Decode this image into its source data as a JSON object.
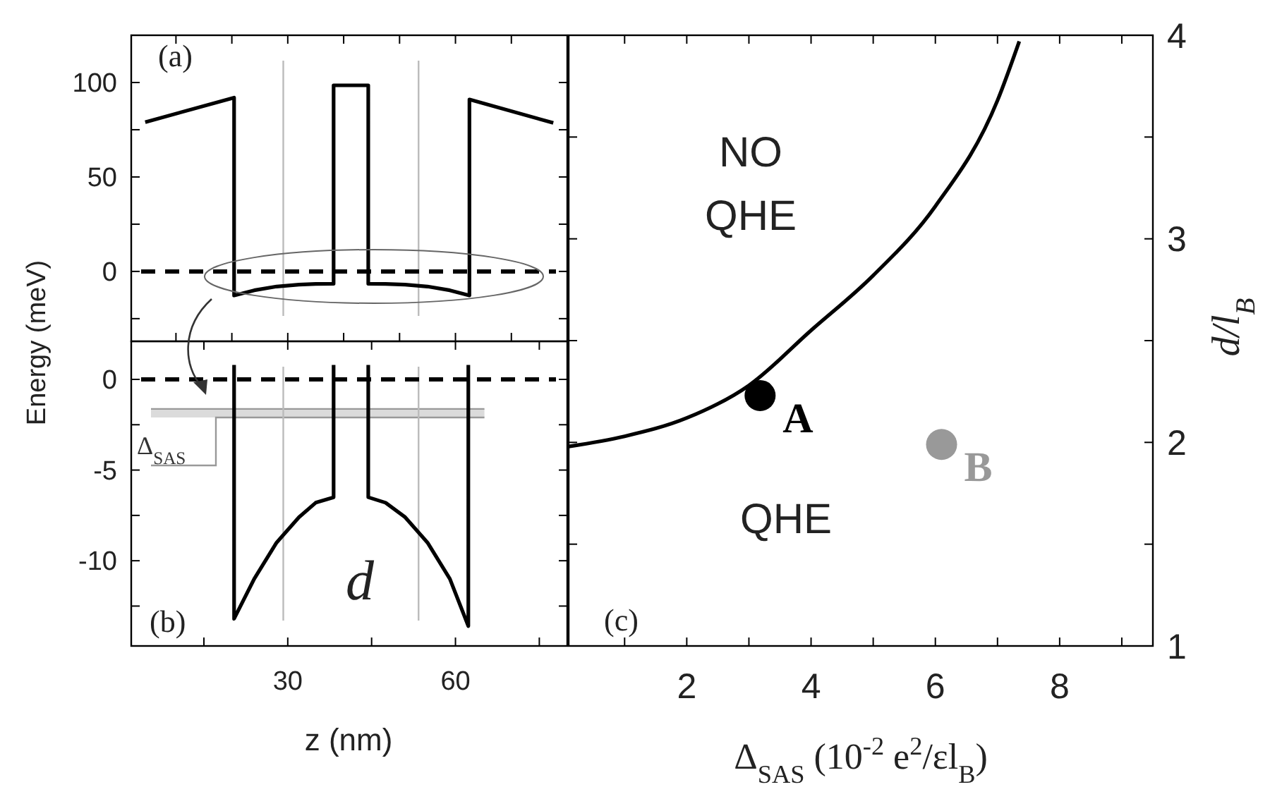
{
  "chart_data": [
    {
      "type": "line",
      "ylabel": "Energy (meV)",
      "xlim": [
        2,
        80
      ],
      "ylim": [
        -37,
        125
      ],
      "xticks": [
        10,
        20,
        30,
        40,
        50,
        60,
        70
      ],
      "yticks": [
        {
          "value": -25,
          "label": null
        },
        0,
        {
          "value": 25,
          "label": null
        },
        50,
        {
          "value": 75,
          "label": null
        },
        100
      ],
      "tick_labels": "y",
      "grid": false,
      "annotations": [
        "(a)"
      ],
      "series": [
        {
          "color": "#000000",
          "x": [
            4.5,
            20.4,
            20.4,
            24,
            28,
            32,
            35,
            38.2,
            38.2,
            44.4,
            44.4,
            47.5,
            51,
            55,
            59,
            62.5,
            62.5,
            77.5
          ],
          "values": [
            79,
            92,
            -12.7,
            -10,
            -8,
            -7,
            -6.6,
            -6.5,
            98.5,
            98.5,
            -6.5,
            -6.6,
            -7,
            -8,
            -10,
            -12.7,
            91,
            78.6
          ]
        }
      ],
      "ref_lines": [
        {
          "axis": "x",
          "value": 29.2,
          "color": "#bbbbbb"
        },
        {
          "axis": "x",
          "value": 53.4,
          "color": "#bbbbbb"
        },
        {
          "axis": "y",
          "value": 0,
          "color": "#000000",
          "line_style": "dashed"
        }
      ]
    },
    {
      "type": "line",
      "xlabel": "z (nm)",
      "xlim": [
        2,
        80
      ],
      "ylim": [
        -14.7,
        2.1
      ],
      "xticks": [
        {
          "value": 15,
          "label": null
        },
        30,
        {
          "value": 45,
          "label": null
        },
        60,
        {
          "value": 75,
          "label": null
        }
      ],
      "yticks": [
        {
          "value": -12.5,
          "label": null
        },
        -10,
        {
          "value": -7.5,
          "label": null
        },
        -5,
        {
          "value": -2.5,
          "label": null
        },
        0
      ],
      "grid": false,
      "annotations": [
        "(b)",
        "d"
      ],
      "series": [
        {
          "color": "#000000",
          "x": [
            20.4,
            20.4,
            24,
            28,
            32,
            35,
            38.2,
            38.2,
            41,
            44.4,
            44.4,
            47.5,
            51,
            55,
            59,
            62.3,
            62.3
          ],
          "values": [
            0.8,
            -13.2,
            -11,
            -9,
            -7.6,
            -6.8,
            -6.5,
            0.8,
            null,
            0.8,
            -6.5,
            -6.8,
            -7.6,
            -9,
            -11,
            -13.6,
            0.8
          ]
        }
      ],
      "ref_lines": [
        {
          "axis": "x",
          "value": 29.2,
          "color": "#bbbbbb"
        },
        {
          "axis": "x",
          "value": 53.4,
          "color": "#bbbbbb"
        },
        {
          "axis": "y",
          "value": 0,
          "color": "#000000",
          "line_style": "dashed"
        }
      ],
      "bands": [
        {
          "axis": "y",
          "from": -2.1,
          "to": -1.63,
          "label": "Δ$_{SAS}$",
          "color": "#999999"
        }
      ]
    },
    {
      "type": "line",
      "xlabel": "Δ$_{SAS}$ (10$^{-2}$ e$^{2}$/εl$_{B}$)",
      "ylabel": "d/l$_{B}$",
      "xlim": [
        0.1,
        9.5
      ],
      "ylim": [
        1,
        4
      ],
      "xticks": [
        {
          "value": 1,
          "label": null
        },
        2,
        {
          "value": 3,
          "label": null
        },
        4,
        {
          "value": 5,
          "label": null
        },
        6,
        {
          "value": 7,
          "label": null
        },
        8,
        {
          "value": 9,
          "label": null
        }
      ],
      "yticks": [
        1,
        {
          "value": 1.5,
          "label": null
        },
        2,
        {
          "value": 2.5,
          "label": null
        },
        3,
        {
          "value": 3.5,
          "label": null
        },
        4
      ],
      "grid": false,
      "annotations": [
        "(c)",
        "NO QHE",
        "QHE",
        {
          "text": "A",
          "x": 3.18,
          "y": 2.23
        },
        {
          "text": "B",
          "x": 6.1,
          "y": 1.99
        }
      ],
      "series": [
        {
          "color": "#000000",
          "x": [
            0.1,
            1,
            2,
            3,
            4,
            5,
            6,
            7,
            7.35
          ],
          "values": [
            1.98,
            2.03,
            2.12,
            2.28,
            2.55,
            2.82,
            3.16,
            3.68,
            3.97
          ]
        },
        {
          "type": "scatter",
          "marker": "circle",
          "x": [
            3.18,
            6.1
          ],
          "values": [
            2.23,
            1.99
          ],
          "colors": [
            "#000000",
            "#999999"
          ]
        }
      ]
    }
  ]
}
